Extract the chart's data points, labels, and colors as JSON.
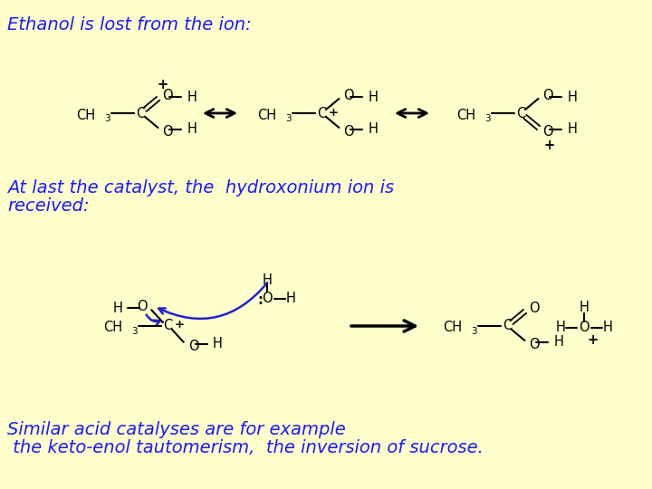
{
  "background_color": "#FFFFCC",
  "text_color": "#1a1aff",
  "struct_color": "#000000",
  "line1": "Ethanol is lost from the ion:",
  "line2": "At last the catalyst, the  hydroxonium ion is",
  "line3": "received:",
  "line4": "Similar acid catalyses are for example",
  "line5": " the keto-enol tautomerism,  the inversion of sucrose.",
  "fs_main": 14,
  "fs_struct": 10.5
}
